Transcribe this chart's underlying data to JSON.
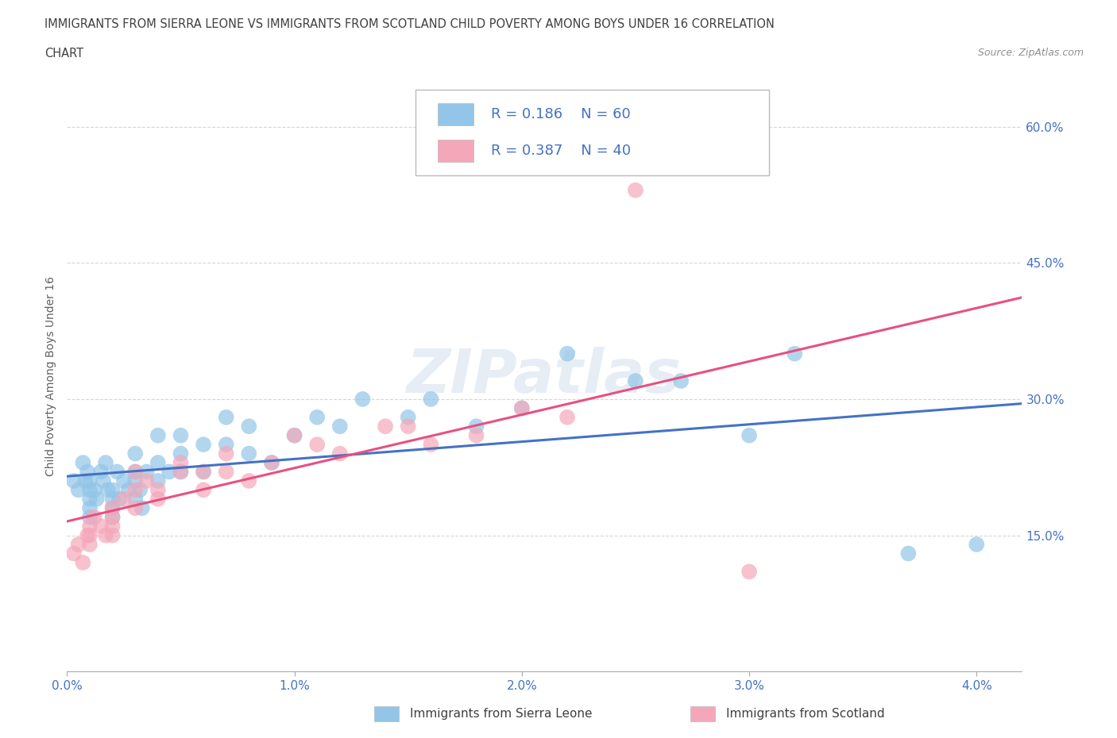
{
  "title_line1": "IMMIGRANTS FROM SIERRA LEONE VS IMMIGRANTS FROM SCOTLAND CHILD POVERTY AMONG BOYS UNDER 16 CORRELATION",
  "title_line2": "CHART",
  "source": "Source: ZipAtlas.com",
  "ylabel": "Child Poverty Among Boys Under 16",
  "xlim": [
    0.0,
    0.042
  ],
  "ylim": [
    0.0,
    0.65
  ],
  "xtick_vals": [
    0.0,
    0.01,
    0.02,
    0.03,
    0.04
  ],
  "xtick_labels": [
    "0.0%",
    "1.0%",
    "2.0%",
    "3.0%",
    "4.0%"
  ],
  "ytick_vals": [
    0.15,
    0.3,
    0.45,
    0.6
  ],
  "ytick_labels": [
    "15.0%",
    "30.0%",
    "45.0%",
    "60.0%"
  ],
  "sl_color": "#92C5E8",
  "sc_color": "#F4A7B9",
  "sl_line_color": "#4472C4",
  "sc_line_color": "#E85080",
  "sierra_leone_R": 0.186,
  "sierra_leone_N": 60,
  "scotland_R": 0.387,
  "scotland_N": 40,
  "watermark": "ZIPatlas",
  "sl_x": [
    0.0003,
    0.0005,
    0.0007,
    0.0008,
    0.0009,
    0.001,
    0.001,
    0.001,
    0.001,
    0.001,
    0.0012,
    0.0013,
    0.0015,
    0.0016,
    0.0017,
    0.0018,
    0.002,
    0.002,
    0.002,
    0.002,
    0.0022,
    0.0023,
    0.0025,
    0.0027,
    0.003,
    0.003,
    0.003,
    0.003,
    0.0032,
    0.0033,
    0.0035,
    0.004,
    0.004,
    0.004,
    0.0045,
    0.005,
    0.005,
    0.005,
    0.006,
    0.006,
    0.007,
    0.007,
    0.008,
    0.008,
    0.009,
    0.01,
    0.011,
    0.012,
    0.013,
    0.015,
    0.016,
    0.018,
    0.02,
    0.022,
    0.025,
    0.027,
    0.03,
    0.032,
    0.037,
    0.04
  ],
  "sl_y": [
    0.21,
    0.2,
    0.23,
    0.21,
    0.22,
    0.21,
    0.2,
    0.19,
    0.18,
    0.17,
    0.2,
    0.19,
    0.22,
    0.21,
    0.23,
    0.2,
    0.2,
    0.19,
    0.18,
    0.17,
    0.22,
    0.19,
    0.21,
    0.2,
    0.24,
    0.22,
    0.21,
    0.19,
    0.2,
    0.18,
    0.22,
    0.26,
    0.23,
    0.21,
    0.22,
    0.26,
    0.24,
    0.22,
    0.25,
    0.22,
    0.28,
    0.25,
    0.27,
    0.24,
    0.23,
    0.26,
    0.28,
    0.27,
    0.3,
    0.28,
    0.3,
    0.27,
    0.29,
    0.35,
    0.32,
    0.32,
    0.26,
    0.35,
    0.13,
    0.14
  ],
  "sc_x": [
    0.0003,
    0.0005,
    0.0007,
    0.0009,
    0.001,
    0.001,
    0.001,
    0.0012,
    0.0015,
    0.0017,
    0.002,
    0.002,
    0.002,
    0.002,
    0.0025,
    0.003,
    0.003,
    0.003,
    0.0035,
    0.004,
    0.004,
    0.005,
    0.005,
    0.006,
    0.006,
    0.007,
    0.007,
    0.008,
    0.009,
    0.01,
    0.011,
    0.012,
    0.014,
    0.015,
    0.016,
    0.018,
    0.02,
    0.022,
    0.025,
    0.03
  ],
  "sc_y": [
    0.13,
    0.14,
    0.12,
    0.15,
    0.14,
    0.16,
    0.15,
    0.17,
    0.16,
    0.15,
    0.18,
    0.17,
    0.16,
    0.15,
    0.19,
    0.22,
    0.2,
    0.18,
    0.21,
    0.2,
    0.19,
    0.23,
    0.22,
    0.22,
    0.2,
    0.24,
    0.22,
    0.21,
    0.23,
    0.26,
    0.25,
    0.24,
    0.27,
    0.27,
    0.25,
    0.26,
    0.29,
    0.28,
    0.53,
    0.11
  ],
  "background_color": "#FFFFFF",
  "grid_color": "#CCCCCC",
  "tick_color": "#4472C4",
  "title_color": "#404040",
  "axis_label_color": "#606060"
}
